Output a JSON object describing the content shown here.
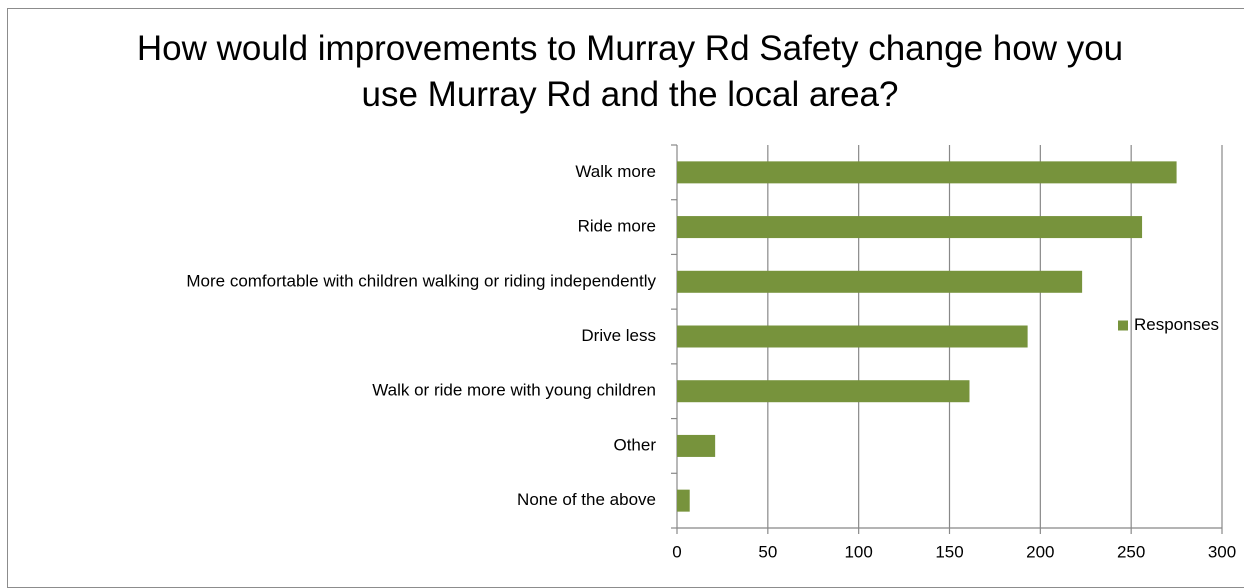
{
  "chart_data": {
    "type": "bar",
    "orientation": "horizontal",
    "title": "How would improvements to Murray Rd Safety change how you use Murray Rd and the local area?",
    "categories": [
      "Walk more",
      "Ride more",
      "More comfortable with children walking or riding independently",
      "Drive less",
      "Walk or ride more with young children",
      "Other",
      "None of the above"
    ],
    "series": [
      {
        "name": "Responses",
        "color": "#77933c",
        "values": [
          275,
          256,
          223,
          193,
          161,
          21,
          7
        ]
      }
    ],
    "xlim": [
      0,
      300
    ],
    "xticks": [
      0,
      50,
      100,
      150,
      200,
      250,
      300
    ],
    "grid": true,
    "legend": "right"
  }
}
